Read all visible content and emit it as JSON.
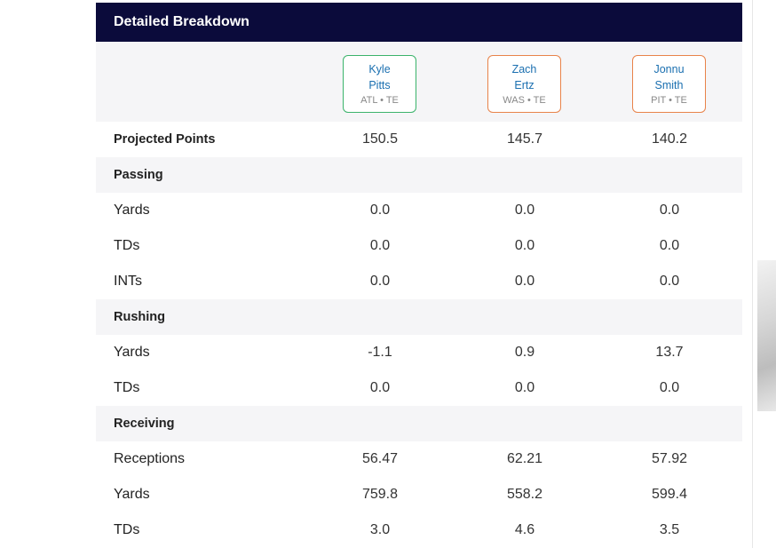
{
  "panel": {
    "title": "Detailed Breakdown"
  },
  "players": [
    {
      "first": "Kyle",
      "last": "Pitts",
      "team_pos": "ATL • TE",
      "border_color": "#3bb36b"
    },
    {
      "first": "Zach",
      "last": "Ertz",
      "team_pos": "WAS • TE",
      "border_color": "#e8834a"
    },
    {
      "first": "Jonnu",
      "last": "Smith",
      "team_pos": "PIT • TE",
      "border_color": "#e8834a"
    }
  ],
  "rows": [
    {
      "label": "Projected Points",
      "values": [
        "150.5",
        "145.7",
        "140.2"
      ]
    },
    {
      "label": "Passing"
    },
    {
      "label": "Yards",
      "values": [
        "0.0",
        "0.0",
        "0.0"
      ]
    },
    {
      "label": "TDs",
      "values": [
        "0.0",
        "0.0",
        "0.0"
      ]
    },
    {
      "label": "INTs",
      "values": [
        "0.0",
        "0.0",
        "0.0"
      ]
    },
    {
      "label": "Rushing"
    },
    {
      "label": "Yards",
      "values": [
        "-1.1",
        "0.9",
        "13.7"
      ]
    },
    {
      "label": "TDs",
      "values": [
        "0.0",
        "0.0",
        "0.0"
      ]
    },
    {
      "label": "Receiving"
    },
    {
      "label": "Receptions",
      "values": [
        "56.47",
        "62.21",
        "57.92"
      ]
    },
    {
      "label": "Yards",
      "values": [
        "759.8",
        "558.2",
        "599.4"
      ]
    },
    {
      "label": "TDs",
      "values": [
        "3.0",
        "4.6",
        "3.5"
      ]
    }
  ]
}
